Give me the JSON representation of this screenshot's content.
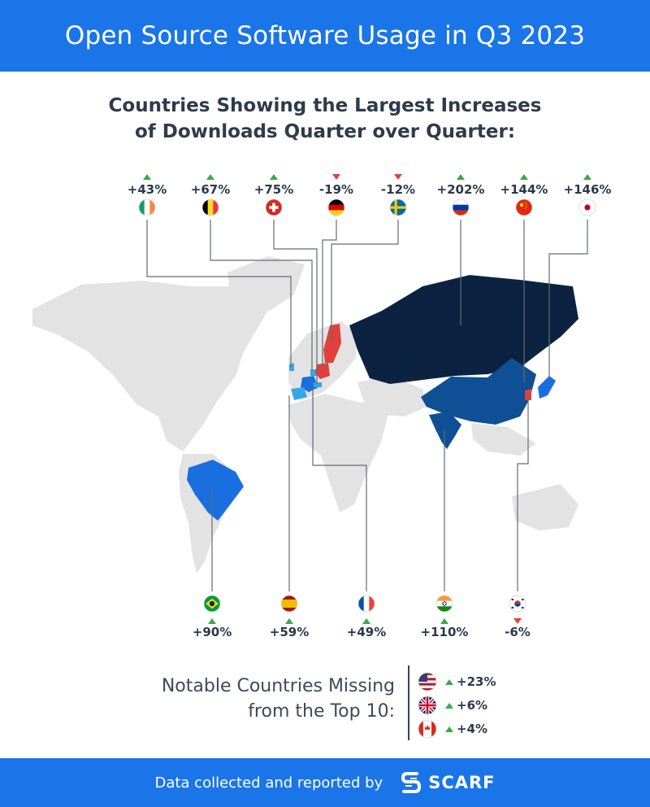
{
  "header": {
    "title": "Open Source Software Usage in Q3 2023"
  },
  "subtitle": {
    "line1": "Countries Showing the Largest Increases",
    "line2": "of Downloads Quarter over Quarter:"
  },
  "chart_data": {
    "type": "map",
    "unit": "% change in downloads, quarter over quarter",
    "top_row": [
      {
        "country": "Ireland",
        "flag": "ireland-flag",
        "value": 43,
        "label": "+43%",
        "direction": "up"
      },
      {
        "country": "Belgium",
        "flag": "belgium-flag",
        "value": 67,
        "label": "+67%",
        "direction": "up"
      },
      {
        "country": "Switzerland",
        "flag": "switzerland-flag",
        "value": 75,
        "label": "+75%",
        "direction": "up"
      },
      {
        "country": "Germany",
        "flag": "germany-flag",
        "value": -19,
        "label": "-19%",
        "direction": "down"
      },
      {
        "country": "Sweden",
        "flag": "sweden-flag",
        "value": -12,
        "label": "-12%",
        "direction": "down"
      },
      {
        "country": "Russia",
        "flag": "russia-flag",
        "value": 202,
        "label": "+202%",
        "direction": "up"
      },
      {
        "country": "China",
        "flag": "china-flag",
        "value": 144,
        "label": "+144%",
        "direction": "up"
      },
      {
        "country": "Japan",
        "flag": "japan-flag",
        "value": 146,
        "label": "+146%",
        "direction": "up"
      }
    ],
    "bottom_row": [
      {
        "country": "Brazil",
        "flag": "brazil-flag",
        "value": 90,
        "label": "+90%",
        "direction": "up"
      },
      {
        "country": "Spain",
        "flag": "spain-flag",
        "value": 59,
        "label": "+59%",
        "direction": "up"
      },
      {
        "country": "France",
        "flag": "france-flag",
        "value": 49,
        "label": "+49%",
        "direction": "up"
      },
      {
        "country": "India",
        "flag": "india-flag",
        "value": 110,
        "label": "+110%",
        "direction": "up"
      },
      {
        "country": "South Korea",
        "flag": "south-korea-flag",
        "value": -6,
        "label": "-6%",
        "direction": "down"
      }
    ],
    "colors": {
      "highest": "#0b2340",
      "high": "#0f4f95",
      "medium": "#1a6fe0",
      "low": "#36a6ea",
      "decrease": "#e2403c",
      "land": "#e3e3e3",
      "up_arrow": "#3ca84a",
      "down_arrow": "#e2403c"
    }
  },
  "missing": {
    "title_line1": "Notable Countries Missing",
    "title_line2": "from the Top 10:",
    "items": [
      {
        "country": "United States",
        "flag": "usa-flag",
        "value": 23,
        "label": "+23%",
        "direction": "up"
      },
      {
        "country": "United Kingdom",
        "flag": "uk-flag",
        "value": 6,
        "label": "+6%",
        "direction": "up"
      },
      {
        "country": "Canada",
        "flag": "canada-flag",
        "value": 4,
        "label": "+4%",
        "direction": "up"
      }
    ]
  },
  "footer": {
    "text": "Data collected and reported by",
    "brand": "SCARF",
    "logo_icon": "scarf-logo-icon"
  }
}
